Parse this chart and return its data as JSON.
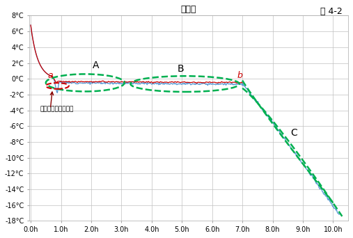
{
  "title": "蒸留水",
  "fig_label": "図 4-2",
  "xlabel_ticks": [
    0.0,
    1.0,
    2.0,
    3.0,
    4.0,
    5.0,
    6.0,
    7.0,
    8.0,
    9.0,
    10.0
  ],
  "xlabel_labels": [
    "0.0h",
    "1.0h",
    "2.0h",
    "3.0h",
    "4.0h",
    "5.0h",
    "6.0h",
    "7.0h",
    "8.0h",
    "9.0h",
    "10.0h"
  ],
  "ylim": [
    -18,
    8
  ],
  "xlim": [
    -0.05,
    10.5
  ],
  "yticks": [
    -18,
    -16,
    -14,
    -12,
    -10,
    -8,
    -6,
    -4,
    -2,
    0,
    2,
    4,
    6,
    8
  ],
  "ytick_labels": [
    "-18°C",
    "-16°C",
    "-14°C",
    "-12°C",
    "-10°C",
    "-8°C",
    "-6°C",
    "-4°C",
    "-2°C",
    "0°C",
    "2°C",
    "4°C",
    "6°C",
    "8°C"
  ],
  "blue_line_color": "#5B9BD5",
  "red_line_color": "#CC0000",
  "green_dashed_color": "#00B050",
  "red_circle_color": "#CC0000",
  "label_A_color": "#000000",
  "label_B_color": "#000000",
  "label_C_color": "#000000",
  "background_color": "#FFFFFF",
  "grid_color": "#C0C0C0",
  "annotation_text_color": "#000000",
  "annotation_arrow_color": "#880000"
}
